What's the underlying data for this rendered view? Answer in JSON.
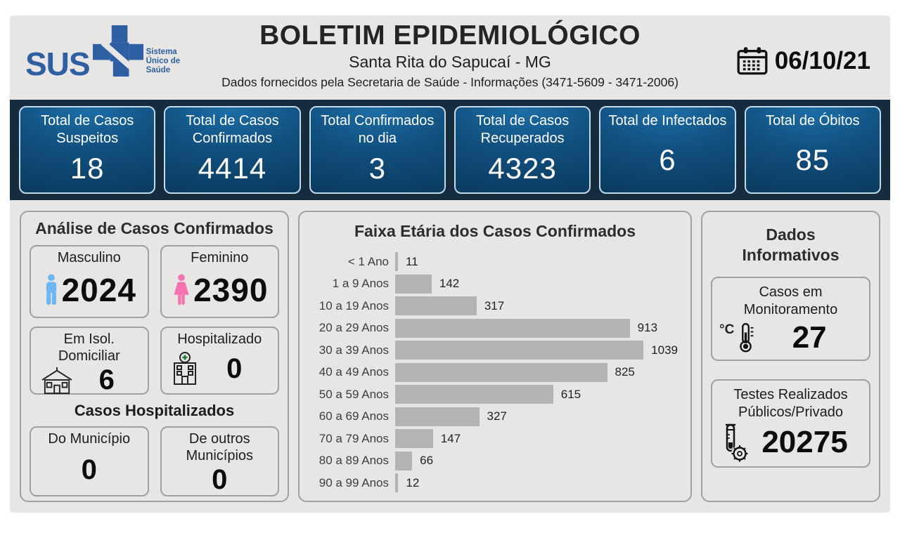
{
  "header": {
    "logo_text": "SUS",
    "logo_tagline": "Sistema Único de Saúde",
    "title": "BOLETIM EPIDEMIOLÓGICO",
    "subtitle": "Santa Rita do Sapucaí - MG",
    "info_line": "Dados fornecidos pela Secretaria de Saúde - Informações (3471-5609 - 3471-2006)",
    "date": "06/10/21"
  },
  "stats": {
    "cards": [
      {
        "label": "Total de Casos Suspeitos",
        "value": "18"
      },
      {
        "label": "Total de Casos Confirmados",
        "value": "4414"
      },
      {
        "label": "Total Confirmados no dia",
        "value": "3"
      },
      {
        "label": "Total de Casos Recuperados",
        "value": "4323"
      },
      {
        "label": "Total de Infectados",
        "value": "6"
      },
      {
        "label": "Total de Óbitos",
        "value": "85"
      }
    ]
  },
  "analysis": {
    "title": "Análise de Casos Confirmados",
    "male": {
      "label": "Masculino",
      "value": "2024"
    },
    "female": {
      "label": "Feminino",
      "value": "2390"
    },
    "isolation": {
      "label": "Em Isol. Domiciliar",
      "value": "6"
    },
    "hospitalized": {
      "label": "Hospitalizado",
      "value": "0"
    },
    "hospital_section": {
      "title": "Casos Hospitalizados",
      "municipality": {
        "label": "Do Município",
        "value": "0"
      },
      "other_municipalities": {
        "label": "De outros Municípios",
        "value": "0"
      }
    }
  },
  "chart_data": {
    "type": "bar",
    "orientation": "horizontal",
    "title": "Faixa Etária dos Casos Confirmados",
    "categories": [
      "< 1 Ano",
      "1 a 9 Anos",
      "10 a 19 Anos",
      "20 a 29 Anos",
      "30 a 39 Anos",
      "40 a 49 Anos",
      "50 a 59 Anos",
      "60 a 69 Anos",
      "70 a 79 Anos",
      "80 a 89 Anos",
      "90 a 99 Anos"
    ],
    "values": [
      11,
      142,
      317,
      913,
      1039,
      825,
      615,
      327,
      147,
      66,
      12
    ],
    "xlim": [
      0,
      1100
    ],
    "grid": false,
    "data_labels": true,
    "bar_color": "#b5b4b3"
  },
  "info_panel": {
    "title": "Dados Informativos",
    "monitoring": {
      "label": "Casos em Monitoramento",
      "value": "27",
      "degrees_label": "°C"
    },
    "tests": {
      "label": "Testes Realizados Públicos/Privado",
      "value": "20275"
    }
  },
  "colors": {
    "brand_blue": "#2e5fa3",
    "navy_bar": "#152b3e",
    "stat_card_gradient_light": "#1d6fa8",
    "stat_card_gradient_dark": "#0a3a5f",
    "stat_card_border": "#c2d9e8",
    "male_icon": "#6db6f2",
    "female_icon": "#f473b0",
    "bar_fill": "#b5b4b3",
    "background": "#e7e6e4"
  },
  "icons": [
    "sus-cross-icon",
    "calendar-icon",
    "male-icon",
    "female-icon",
    "house-icon",
    "hospital-icon",
    "thermometer-icon",
    "testtube-virus-icon"
  ]
}
